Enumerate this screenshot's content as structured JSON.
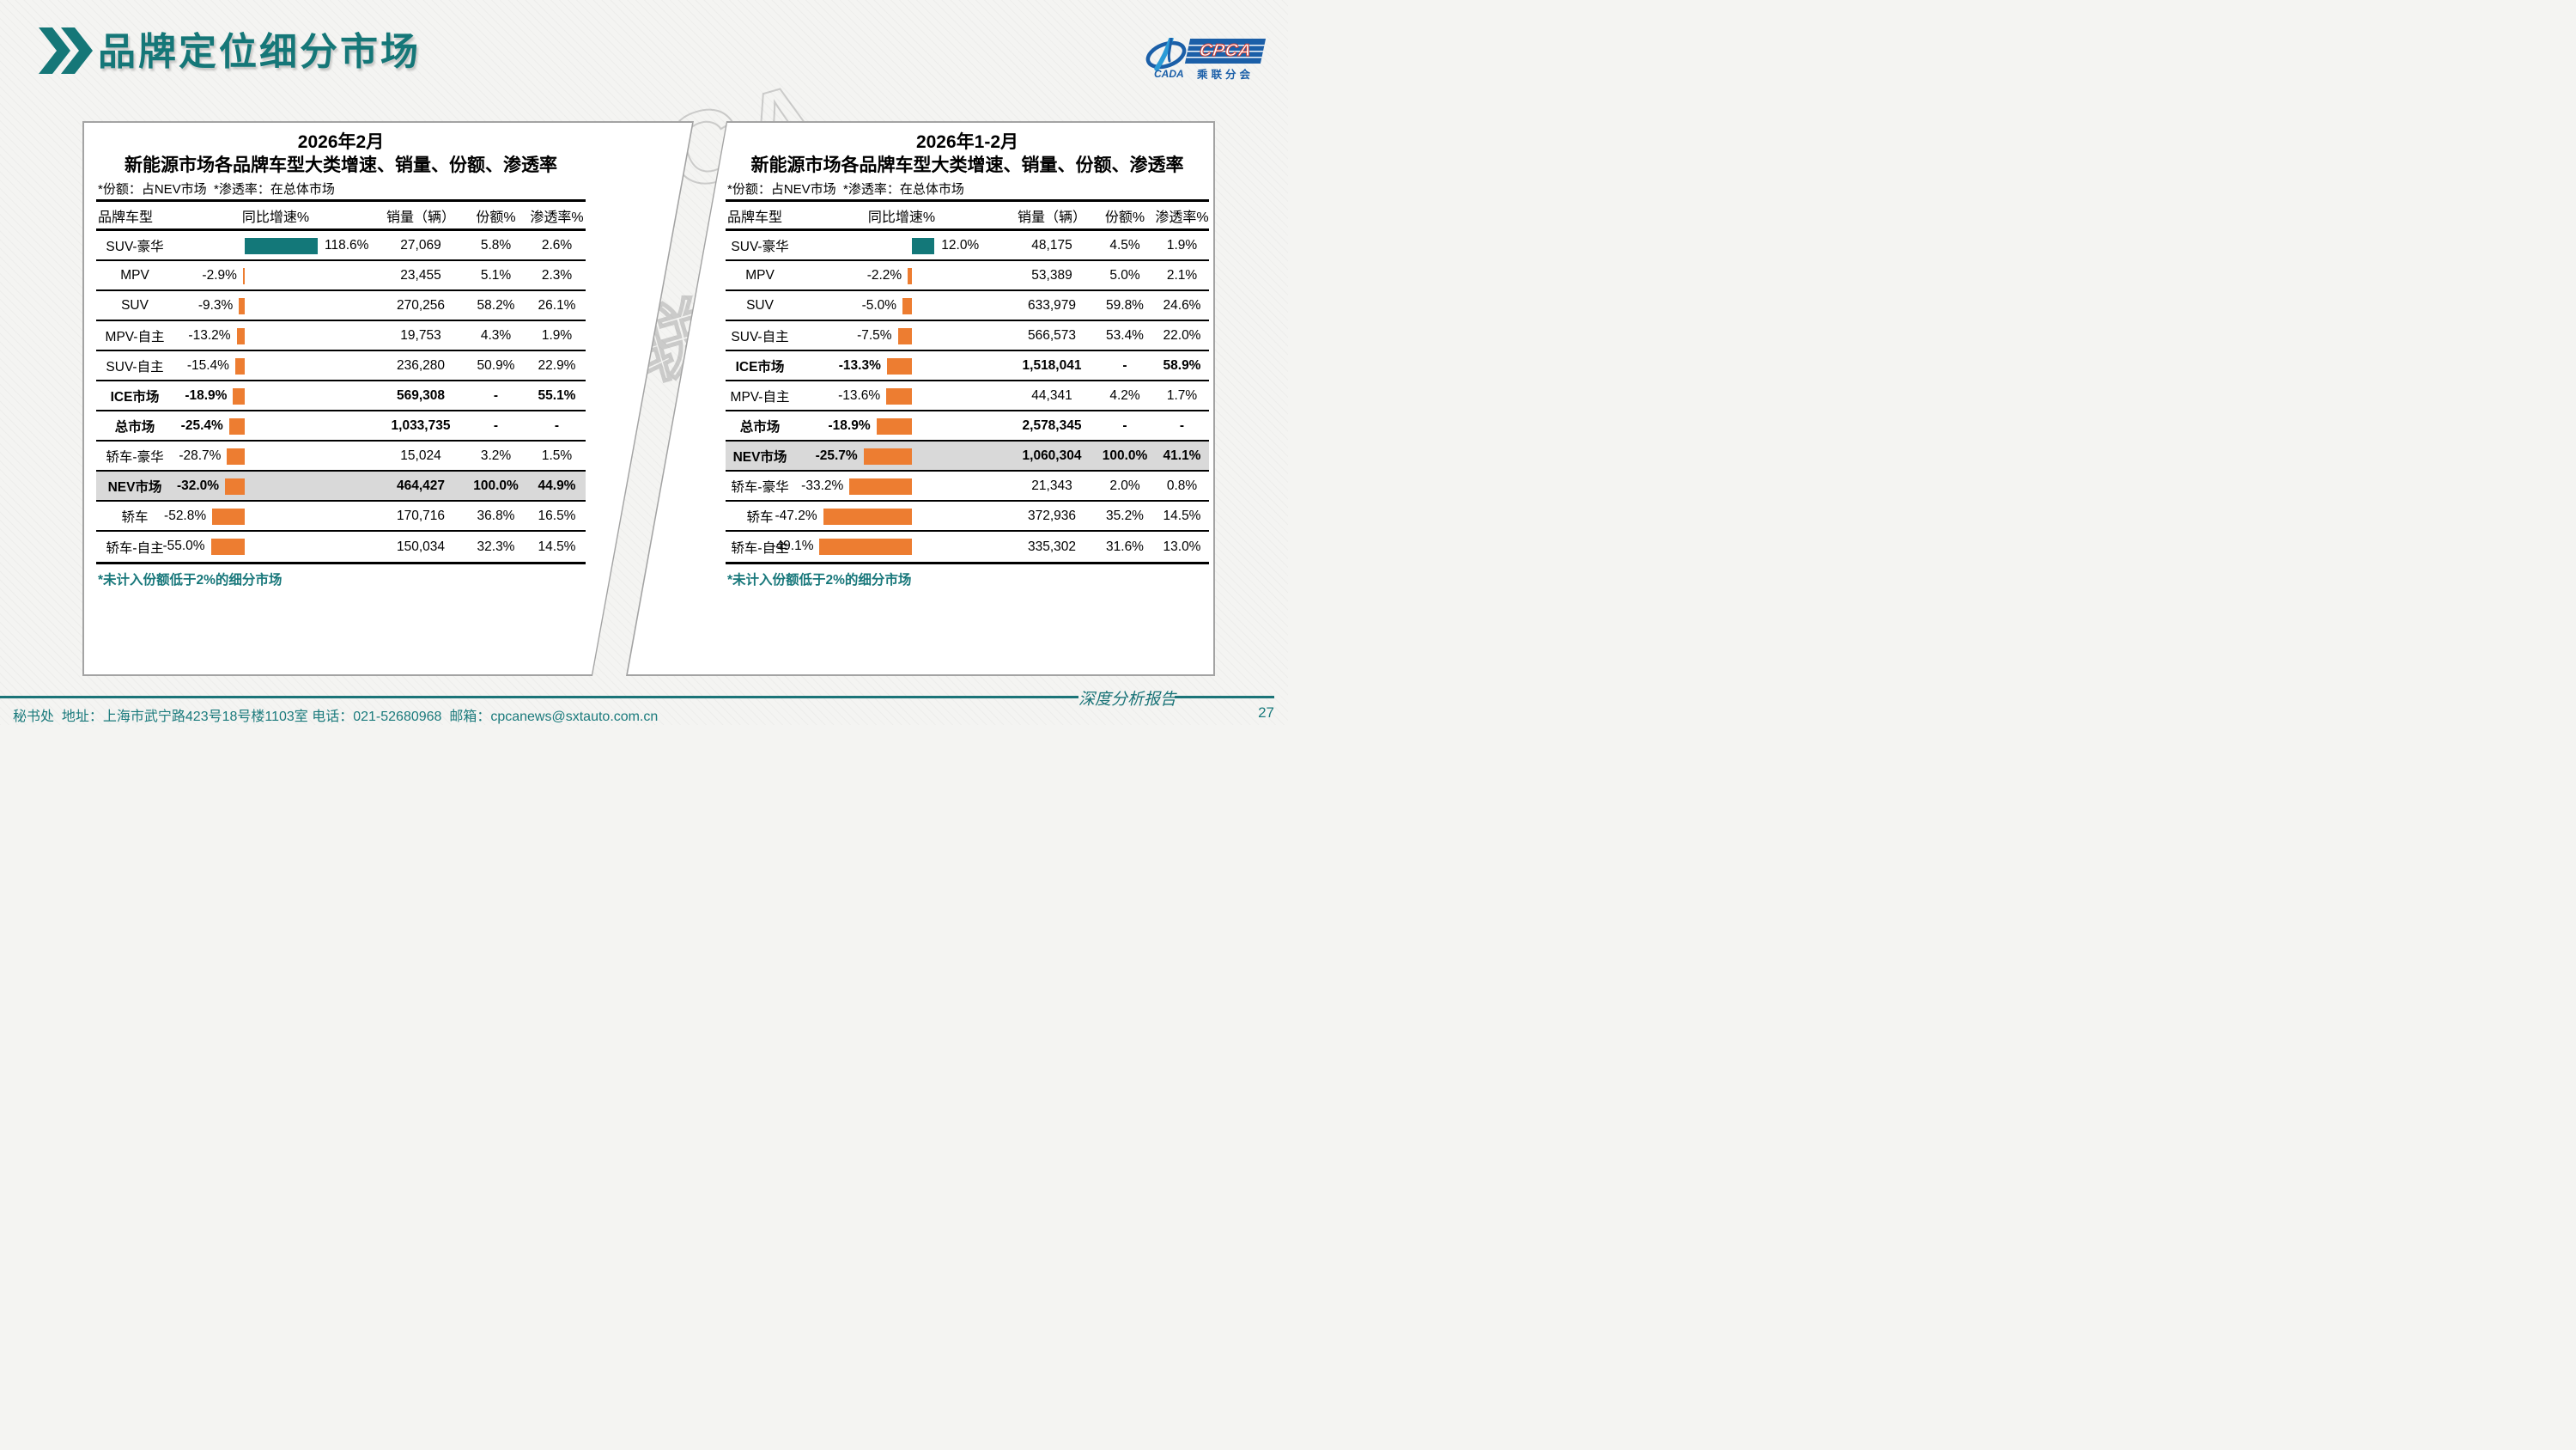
{
  "page": {
    "title": "品牌定位细分市场",
    "page_number": "27",
    "footer_left": "秘书处  地址：上海市武宁路423号18号楼1103室 电话：021-52680968  邮箱：cpcanews@sxtauto.com.cn",
    "footer_report_label": "深度分析报告",
    "watermark_line1": "CPCA",
    "watermark_line2": "乘联分会"
  },
  "logo": {
    "cada_label": "CADA",
    "cpca_label": "CPCA",
    "subtitle": "乘联分会"
  },
  "colors": {
    "teal_accent": "#157778",
    "bar_positive_teal": "#137879",
    "bar_negative_orange": "#ed7d31",
    "highlight_row_gray": "#d9d9d9",
    "logo_blue": "#1b5fa8",
    "footer_teal": "#1a7a7c"
  },
  "tables": [
    {
      "title_line1": "2026年2月",
      "title_line2": "新能源市场各品牌车型大类增速、销量、份额、渗透率",
      "note": "*份额：占NEV市场  *渗透率：在总体市场",
      "footnote": "*未计入份额低于2%的细分市场",
      "columns": [
        "品牌车型",
        "同比增速%",
        "销量（辆）",
        "份额%",
        "渗透率%"
      ],
      "rows": [
        {
          "label": "SUV-豪华",
          "growth": "118.6%",
          "sales": "27,069",
          "share": "5.8%",
          "penetration": "2.6%",
          "emphasis": false,
          "highlight": false
        },
        {
          "label": "MPV",
          "growth": "-2.9%",
          "sales": "23,455",
          "share": "5.1%",
          "penetration": "2.3%",
          "emphasis": false,
          "highlight": false
        },
        {
          "label": "SUV",
          "growth": "-9.3%",
          "sales": "270,256",
          "share": "58.2%",
          "penetration": "26.1%",
          "emphasis": false,
          "highlight": false
        },
        {
          "label": "MPV-自主",
          "growth": "-13.2%",
          "sales": "19,753",
          "share": "4.3%",
          "penetration": "1.9%",
          "emphasis": false,
          "highlight": false
        },
        {
          "label": "SUV-自主",
          "growth": "-15.4%",
          "sales": "236,280",
          "share": "50.9%",
          "penetration": "22.9%",
          "emphasis": false,
          "highlight": false
        },
        {
          "label": "ICE市场",
          "growth": "-18.9%",
          "sales": "569,308",
          "share": "-",
          "penetration": "55.1%",
          "emphasis": true,
          "highlight": false
        },
        {
          "label": "总市场",
          "growth": "-25.4%",
          "sales": "1,033,735",
          "share": "-",
          "penetration": "-",
          "emphasis": true,
          "highlight": false
        },
        {
          "label": "轿车-豪华",
          "growth": "-28.7%",
          "sales": "15,024",
          "share": "3.2%",
          "penetration": "1.5%",
          "emphasis": false,
          "highlight": false
        },
        {
          "label": "NEV市场",
          "growth": "-32.0%",
          "sales": "464,427",
          "share": "100.0%",
          "penetration": "44.9%",
          "emphasis": true,
          "highlight": true
        },
        {
          "label": "轿车",
          "growth": "-52.8%",
          "sales": "170,716",
          "share": "36.8%",
          "penetration": "16.5%",
          "emphasis": false,
          "highlight": false
        },
        {
          "label": "轿车-自主",
          "growth": "-55.0%",
          "sales": "150,034",
          "share": "32.3%",
          "penetration": "14.5%",
          "emphasis": false,
          "highlight": false
        }
      ]
    },
    {
      "title_line1": "2026年1-2月",
      "title_line2": "新能源市场各品牌车型大类增速、销量、份额、渗透率",
      "note": "*份额：占NEV市场  *渗透率：在总体市场",
      "footnote": "*未计入份额低于2%的细分市场",
      "columns": [
        "品牌车型",
        "同比增速%",
        "销量（辆）",
        "份额%",
        "渗透率%"
      ],
      "rows": [
        {
          "label": "SUV-豪华",
          "growth": "12.0%",
          "sales": "48,175",
          "share": "4.5%",
          "penetration": "1.9%",
          "emphasis": false,
          "highlight": false
        },
        {
          "label": "MPV",
          "growth": "-2.2%",
          "sales": "53,389",
          "share": "5.0%",
          "penetration": "2.1%",
          "emphasis": false,
          "highlight": false
        },
        {
          "label": "SUV",
          "growth": "-5.0%",
          "sales": "633,979",
          "share": "59.8%",
          "penetration": "24.6%",
          "emphasis": false,
          "highlight": false
        },
        {
          "label": "SUV-自主",
          "growth": "-7.5%",
          "sales": "566,573",
          "share": "53.4%",
          "penetration": "22.0%",
          "emphasis": false,
          "highlight": false
        },
        {
          "label": "ICE市场",
          "growth": "-13.3%",
          "sales": "1,518,041",
          "share": "-",
          "penetration": "58.9%",
          "emphasis": true,
          "highlight": false
        },
        {
          "label": "MPV-自主",
          "growth": "-13.6%",
          "sales": "44,341",
          "share": "4.2%",
          "penetration": "1.7%",
          "emphasis": false,
          "highlight": false
        },
        {
          "label": "总市场",
          "growth": "-18.9%",
          "sales": "2,578,345",
          "share": "-",
          "penetration": "-",
          "emphasis": true,
          "highlight": false
        },
        {
          "label": "NEV市场",
          "growth": "-25.7%",
          "sales": "1,060,304",
          "share": "100.0%",
          "penetration": "41.1%",
          "emphasis": true,
          "highlight": true
        },
        {
          "label": "轿车-豪华",
          "growth": "-33.2%",
          "sales": "21,343",
          "share": "2.0%",
          "penetration": "0.8%",
          "emphasis": false,
          "highlight": false
        },
        {
          "label": "轿车",
          "growth": "-47.2%",
          "sales": "372,936",
          "share": "35.2%",
          "penetration": "14.5%",
          "emphasis": false,
          "highlight": false
        },
        {
          "label": "轿车-自主",
          "growth": "-49.1%",
          "sales": "335,302",
          "share": "31.6%",
          "penetration": "13.0%",
          "emphasis": false,
          "highlight": false
        }
      ]
    }
  ],
  "chart_data": [
    {
      "type": "bar",
      "title": "2026年2月 新能源市场各品牌车型大类增速、销量、份额、渗透率",
      "categories": [
        "SUV-豪华",
        "MPV",
        "SUV",
        "MPV-自主",
        "SUV-自主",
        "ICE市场",
        "总市场",
        "轿车-豪华",
        "NEV市场",
        "轿车",
        "轿车-自主"
      ],
      "values": [
        118.6,
        -2.9,
        -9.3,
        -13.2,
        -15.4,
        -18.9,
        -25.4,
        -28.7,
        -32.0,
        -52.8,
        -55.0
      ],
      "xlabel": "同比增速%",
      "ylabel": "",
      "positive_color": "#137879",
      "negative_color": "#ed7d31"
    },
    {
      "type": "bar",
      "title": "2026年1-2月 新能源市场各品牌车型大类增速、销量、份额、渗透率",
      "categories": [
        "SUV-豪华",
        "MPV",
        "SUV",
        "SUV-自主",
        "ICE市场",
        "MPV-自主",
        "总市场",
        "NEV市场",
        "轿车-豪华",
        "轿车",
        "轿车-自主"
      ],
      "values": [
        12.0,
        -2.2,
        -5.0,
        -7.5,
        -13.3,
        -13.6,
        -18.9,
        -25.7,
        -33.2,
        -47.2,
        -49.1
      ],
      "xlabel": "同比增速%",
      "ylabel": "",
      "positive_color": "#137879",
      "negative_color": "#ed7d31"
    }
  ]
}
